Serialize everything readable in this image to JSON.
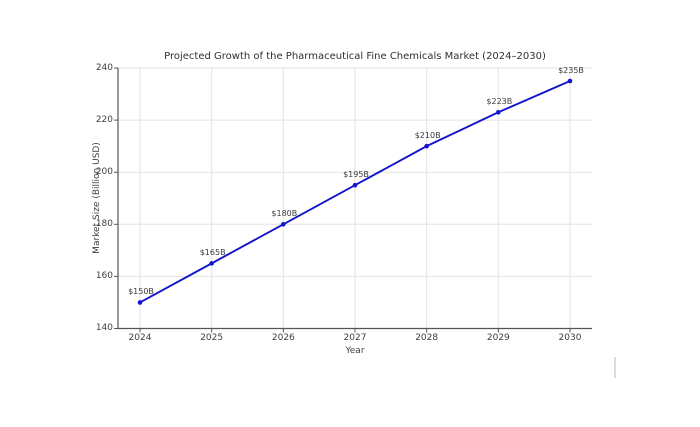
{
  "figure": {
    "background": "#ffffff"
  },
  "chart_data": {
    "type": "line",
    "title": "Projected Growth of the Pharmaceutical Fine Chemicals Market (2024–2030)",
    "xlabel": "Year",
    "ylabel": "Market Size (Billion USD)",
    "categories": [
      "2024",
      "2025",
      "2026",
      "2027",
      "2028",
      "2029",
      "2030"
    ],
    "values": [
      150,
      165,
      180,
      195,
      210,
      223,
      235
    ],
    "point_labels": [
      "$150B",
      "$165B",
      "$180B",
      "$195B",
      "$210B",
      "$223B",
      "$235B"
    ],
    "ylim": [
      140,
      240
    ],
    "yticks": [
      140,
      160,
      180,
      200,
      220,
      240
    ],
    "grid": true,
    "legend": "none",
    "line_color": "#1414cc",
    "marker": "circle",
    "axis_color": "#555555",
    "grid_color": "#e3e3e3",
    "tick_text_color": "#404040",
    "point_label_color": "#3a3a3a"
  }
}
